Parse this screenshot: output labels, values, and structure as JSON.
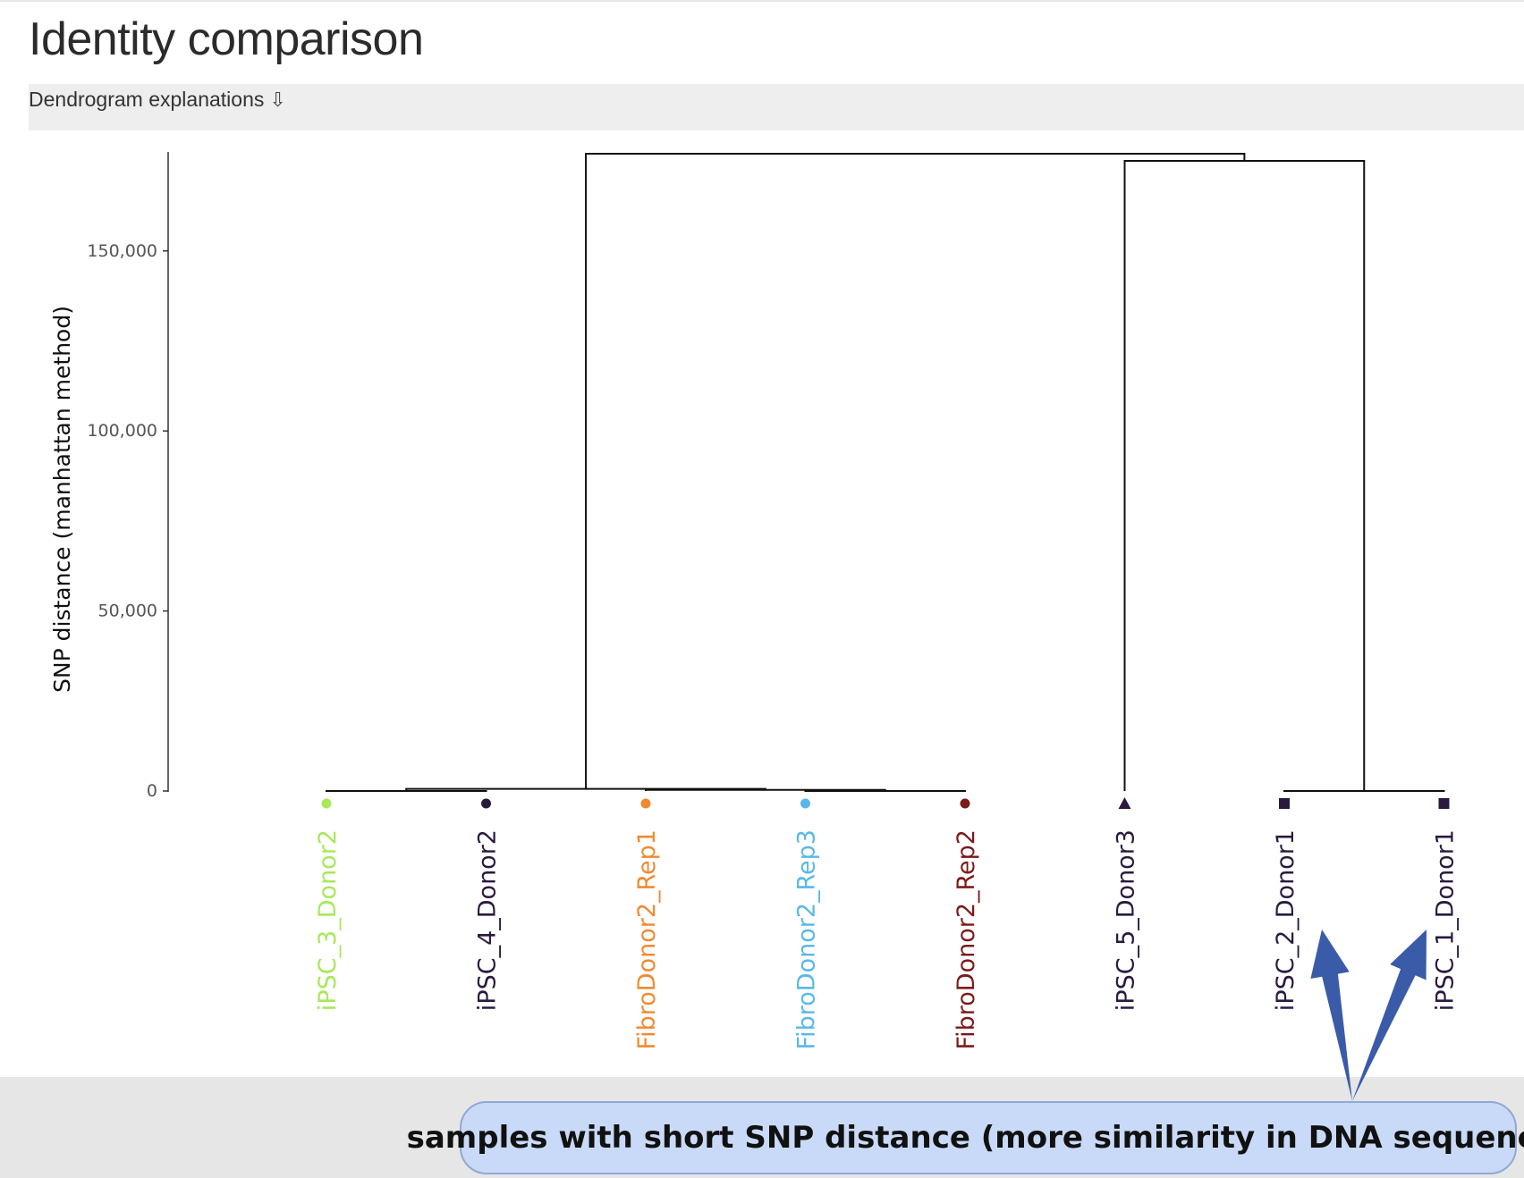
{
  "page": {
    "title": "Identity comparison",
    "explanations_label": "Dendrogram explanations",
    "explanations_icon": "down-arrow-icon"
  },
  "annotation": {
    "text": "samples with short SNP distance (more similarity in DNA sequence)",
    "arrow_color": "#3a5ba8",
    "targets": [
      "iPSC_2_Donor1",
      "iPSC_1_Donor1"
    ]
  },
  "chart_data": {
    "type": "dendrogram",
    "title": "",
    "xlabel": "",
    "ylabel": "SNP distance (manhattan method)",
    "ylim": [
      0,
      177000
    ],
    "yticks": [
      0,
      50000,
      100000,
      150000
    ],
    "ytick_labels": [
      "0",
      "50,000",
      "100,000",
      "150,000"
    ],
    "leaves": [
      {
        "label": "iPSC_3_Donor2",
        "color": "#a8e85a",
        "marker": "circle"
      },
      {
        "label": "iPSC_4_Donor2",
        "color": "#2a1a3e",
        "marker": "circle"
      },
      {
        "label": "FibroDonor2_Rep1",
        "color": "#f08a30",
        "marker": "circle"
      },
      {
        "label": "FibroDonor2_Rep3",
        "color": "#5ab8e8",
        "marker": "circle"
      },
      {
        "label": "FibroDonor2_Rep2",
        "color": "#7a1a1a",
        "marker": "circle"
      },
      {
        "label": "iPSC_5_Donor3",
        "color": "#2a1a3e",
        "marker": "triangle"
      },
      {
        "label": "iPSC_2_Donor1",
        "color": "#2a1a3e",
        "marker": "square"
      },
      {
        "label": "iPSC_1_Donor1",
        "color": "#2a1a3e",
        "marker": "square"
      }
    ],
    "merges": [
      {
        "left": "leaf:0",
        "right": "leaf:1",
        "height": 0
      },
      {
        "left": "leaf:3",
        "right": "leaf:4",
        "height": 0
      },
      {
        "left": "leaf:2",
        "right": "node:1",
        "height": 300
      },
      {
        "left": "node:0",
        "right": "node:2",
        "height": 600
      },
      {
        "left": "leaf:6",
        "right": "leaf:7",
        "height": 0
      },
      {
        "left": "leaf:5",
        "right": "node:4",
        "height": 175000
      },
      {
        "left": "node:3",
        "right": "node:5",
        "height": 177000
      }
    ]
  }
}
